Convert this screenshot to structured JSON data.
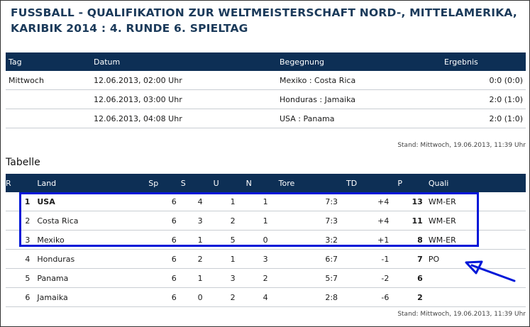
{
  "title_line1": "FUSSBALL - QUALIFIKATION ZUR WELTMEISTERSCHAFT NORD-, MITTELAMERIKA,",
  "title_line2": "KARIBIK 2014 : 4. RUNDE 6. SPIELTAG",
  "spiele": {
    "headers": {
      "tag": "Tag",
      "datum": "Datum",
      "begegnung": "Begegnung",
      "ergebnis": "Ergebnis"
    },
    "rows": [
      {
        "tag": "Mittwoch",
        "datum": "12.06.2013, 02:00 Uhr",
        "begegnung": "Mexiko : Costa Rica",
        "ergebnis": "0:0 (0:0)"
      },
      {
        "tag": "",
        "datum": "12.06.2013, 03:00 Uhr",
        "begegnung": "Honduras : Jamaika",
        "ergebnis": "2:0 (1:0)"
      },
      {
        "tag": "",
        "datum": "12.06.2013, 04:08 Uhr",
        "begegnung": "USA : Panama",
        "ergebnis": "2:0 (1:0)"
      }
    ],
    "stand": "Stand: Mittwoch, 19.06.2013, 11:39 Uhr"
  },
  "tabelle": {
    "section_title": "Tabelle",
    "headers": {
      "r": "R",
      "land": "Land",
      "sp": "Sp",
      "s": "S",
      "u": "U",
      "n": "N",
      "tore": "Tore",
      "td": "TD",
      "p": "P",
      "quali": "Quali"
    },
    "rows": [
      {
        "r": "1",
        "land": "USA",
        "sp": "6",
        "s": "4",
        "u": "1",
        "n": "1",
        "tore": "7:3",
        "td": "+4",
        "p": "13",
        "quali": "WM-ER"
      },
      {
        "r": "2",
        "land": "Costa Rica",
        "sp": "6",
        "s": "3",
        "u": "2",
        "n": "1",
        "tore": "7:3",
        "td": "+4",
        "p": "11",
        "quali": "WM-ER"
      },
      {
        "r": "3",
        "land": "Mexiko",
        "sp": "6",
        "s": "1",
        "u": "5",
        "n": "0",
        "tore": "3:2",
        "td": "+1",
        "p": "8",
        "quali": "WM-ER"
      },
      {
        "r": "4",
        "land": "Honduras",
        "sp": "6",
        "s": "2",
        "u": "1",
        "n": "3",
        "tore": "6:7",
        "td": "-1",
        "p": "7",
        "quali": "PO"
      },
      {
        "r": "5",
        "land": "Panama",
        "sp": "6",
        "s": "1",
        "u": "3",
        "n": "2",
        "tore": "5:7",
        "td": "-2",
        "p": "6",
        "quali": ""
      },
      {
        "r": "6",
        "land": "Jamaika",
        "sp": "6",
        "s": "0",
        "u": "2",
        "n": "4",
        "tore": "2:8",
        "td": "-6",
        "p": "2",
        "quali": ""
      }
    ],
    "stand": "Stand: Mittwoch, 19.06.2013, 11:39 Uhr"
  },
  "colors": {
    "header_bg": "#0d2f55",
    "title": "#1b3a5a",
    "highlight": "#0018d8"
  }
}
